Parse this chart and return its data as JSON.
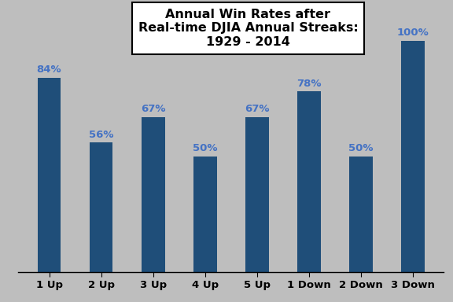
{
  "categories": [
    "1 Up",
    "2 Up",
    "3 Up",
    "4 Up",
    "5 Up",
    "1 Down",
    "2 Down",
    "3 Down"
  ],
  "values": [
    84,
    56,
    67,
    50,
    67,
    78,
    50,
    100
  ],
  "labels": [
    "84%",
    "56%",
    "67%",
    "50%",
    "67%",
    "78%",
    "50%",
    "100%"
  ],
  "bar_color": "#1F4E79",
  "background_color": "#BEBEBE",
  "title_line1": "Annual Win Rates after",
  "title_line2": "Real-time DJIA Annual Streaks:",
  "title_line3": "1929 - 2014",
  "title_fontsize": 11.5,
  "label_fontsize": 9.5,
  "tick_fontsize": 9.5,
  "ylim": [
    0,
    115
  ],
  "bar_width": 0.45,
  "label_color": "#4472C4"
}
